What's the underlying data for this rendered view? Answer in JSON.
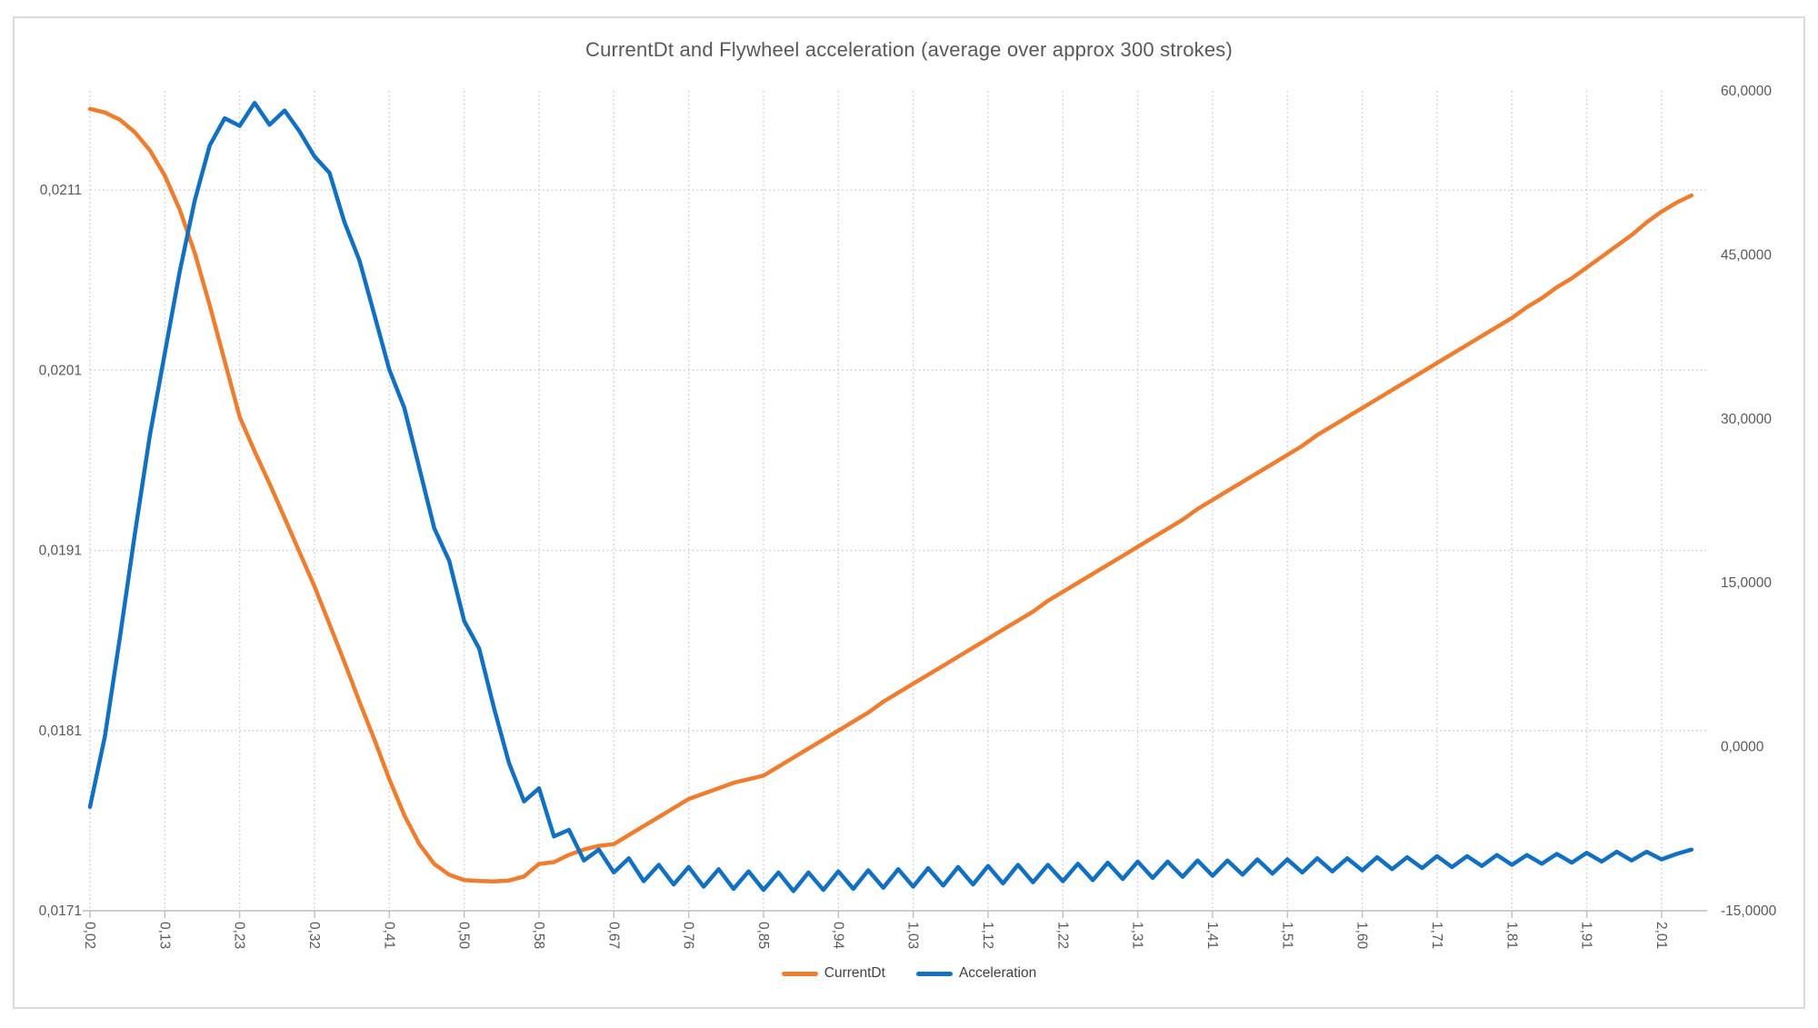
{
  "chart": {
    "title": "CurrentDt and Flywheel acceleration (average over approx 300 strokes)",
    "title_color": "#595959",
    "border_color": "#d9d9d9",
    "background": "#ffffff",
    "axis_text_color": "#595959",
    "gridline_color": "#c9c9c9",
    "axis_line_color": "#bfbfbf",
    "legend": [
      {
        "label": "CurrentDt",
        "color": "#ee7d2f"
      },
      {
        "label": "Acceleration",
        "color": "#1170c2"
      }
    ]
  },
  "chart_data": {
    "type": "line",
    "title": "CurrentDt and Flywheel acceleration (average over approx 300 strokes)",
    "grid": "dotted",
    "legend_position": "bottom",
    "x_tick_labels": [
      "0,02",
      "0,13",
      "0,23",
      "0,32",
      "0,41",
      "0,50",
      "0,58",
      "0,67",
      "0,76",
      "0,85",
      "0,94",
      "1,03",
      "1,12",
      "1,22",
      "1,31",
      "1,41",
      "1,51",
      "1,60",
      "1,71",
      "1,81",
      "1,91",
      "2,01"
    ],
    "x_ticks_every_n_points": 5,
    "left_axis": {
      "min": 0.0171,
      "max": 0.02165,
      "tick_values": [
        0.0171,
        0.0181,
        0.0191,
        0.0201,
        0.0211
      ],
      "tick_labels": [
        "0,0171",
        "0,0181",
        "0,0191",
        "0,0201",
        "0,0211"
      ]
    },
    "right_axis": {
      "min": -15,
      "max": 60,
      "tick_values": [
        -15,
        0,
        15,
        30,
        45,
        60
      ],
      "tick_labels": [
        "-15,0000",
        "0,0000",
        "15,0000",
        "30,0000",
        "45,0000",
        "60,0000"
      ]
    },
    "series": [
      {
        "name": "CurrentDt",
        "color": "#ee7d2f",
        "axis": "left",
        "values": [
          0.02155,
          0.02153,
          0.02149,
          0.02142,
          0.02132,
          0.02118,
          0.02099,
          0.02075,
          0.02046,
          0.02015,
          0.01984,
          0.01965,
          0.01947,
          0.01928,
          0.01909,
          0.0189,
          0.01869,
          0.01848,
          0.01826,
          0.01805,
          0.01783,
          0.01763,
          0.01747,
          0.01736,
          0.0173,
          0.01727,
          0.017265,
          0.017263,
          0.017268,
          0.01729,
          0.01736,
          0.01737,
          0.01741,
          0.01744,
          0.01746,
          0.01747,
          0.01752,
          0.01757,
          0.01762,
          0.01767,
          0.01772,
          0.01775,
          0.01778,
          0.01781,
          0.01783,
          0.01785,
          0.0179,
          0.01795,
          0.018,
          0.01805,
          0.0181,
          0.01815,
          0.0182,
          0.01826,
          0.01831,
          0.01836,
          0.01841,
          0.01846,
          0.01851,
          0.01856,
          0.01861,
          0.01866,
          0.01871,
          0.01876,
          0.01882,
          0.01887,
          0.01892,
          0.01897,
          0.01902,
          0.01907,
          0.01912,
          0.01917,
          0.01922,
          0.01927,
          0.01933,
          0.01938,
          0.01943,
          0.01948,
          0.01953,
          0.01958,
          0.01963,
          0.01968,
          0.01974,
          0.01979,
          0.01984,
          0.01989,
          0.01994,
          0.01999,
          0.02004,
          0.02009,
          0.02014,
          0.02019,
          0.02024,
          0.02029,
          0.02034,
          0.02039,
          0.02045,
          0.0205,
          0.02056,
          0.02061,
          0.02067,
          0.02073,
          0.02079,
          0.02085,
          0.02092,
          0.02098,
          0.02103,
          0.02107
        ]
      },
      {
        "name": "Acceleration",
        "color": "#1170c2",
        "axis": "right",
        "values": [
          -5.5,
          1.0,
          10.0,
          19.5,
          28.5,
          36.0,
          43.5,
          50.0,
          55.0,
          57.5,
          56.8,
          58.9,
          56.9,
          58.2,
          56.3,
          54.0,
          52.5,
          48.0,
          44.5,
          39.5,
          34.5,
          31.0,
          25.5,
          20.0,
          17.0,
          11.5,
          9.0,
          3.5,
          -1.5,
          -5.0,
          -3.8,
          -8.2,
          -7.6,
          -10.4,
          -9.4,
          -11.5,
          -10.2,
          -12.3,
          -10.8,
          -12.6,
          -11.0,
          -12.8,
          -11.2,
          -13.0,
          -11.4,
          -13.1,
          -11.5,
          -13.2,
          -11.5,
          -13.1,
          -11.4,
          -13.0,
          -11.3,
          -12.9,
          -11.2,
          -12.8,
          -11.1,
          -12.7,
          -11.0,
          -12.6,
          -10.9,
          -12.5,
          -10.8,
          -12.4,
          -10.8,
          -12.3,
          -10.7,
          -12.2,
          -10.6,
          -12.1,
          -10.5,
          -12.0,
          -10.5,
          -11.9,
          -10.4,
          -11.8,
          -10.4,
          -11.7,
          -10.3,
          -11.6,
          -10.3,
          -11.5,
          -10.2,
          -11.4,
          -10.2,
          -11.3,
          -10.1,
          -11.2,
          -10.1,
          -11.1,
          -10.0,
          -11.0,
          -10.0,
          -10.9,
          -9.9,
          -10.8,
          -9.9,
          -10.7,
          -9.8,
          -10.6,
          -9.7,
          -10.5,
          -9.6,
          -10.4,
          -9.6,
          -10.3,
          -9.8,
          -9.4
        ]
      }
    ]
  }
}
